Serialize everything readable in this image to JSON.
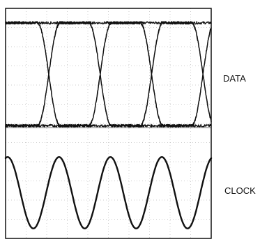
{
  "chart_data": {
    "type": "line",
    "title": "",
    "grid": true,
    "xlim": [
      0,
      10
    ],
    "series": [
      {
        "name": "DATA",
        "kind": "eye-diagram",
        "ylim": [
          -0.1,
          1.1
        ],
        "crossings": [
          2.1,
          4.6,
          7.1,
          9.6
        ],
        "rise_time": 1.1,
        "traces": [
          [
            1,
            0,
            0,
            1,
            1
          ],
          [
            0,
            1,
            1,
            0,
            0
          ],
          [
            1,
            1,
            0,
            0,
            1
          ],
          [
            0,
            0,
            1,
            1,
            0
          ],
          [
            1,
            0,
            1,
            0,
            1
          ],
          [
            0,
            1,
            0,
            1,
            0
          ]
        ]
      },
      {
        "name": "CLOCK",
        "kind": "sine",
        "ylim": [
          -1.2,
          1.2
        ],
        "period": 2.5,
        "peaks": [
          2.6,
          5.1,
          7.6
        ],
        "amplitude": 1.0
      }
    ]
  }
}
